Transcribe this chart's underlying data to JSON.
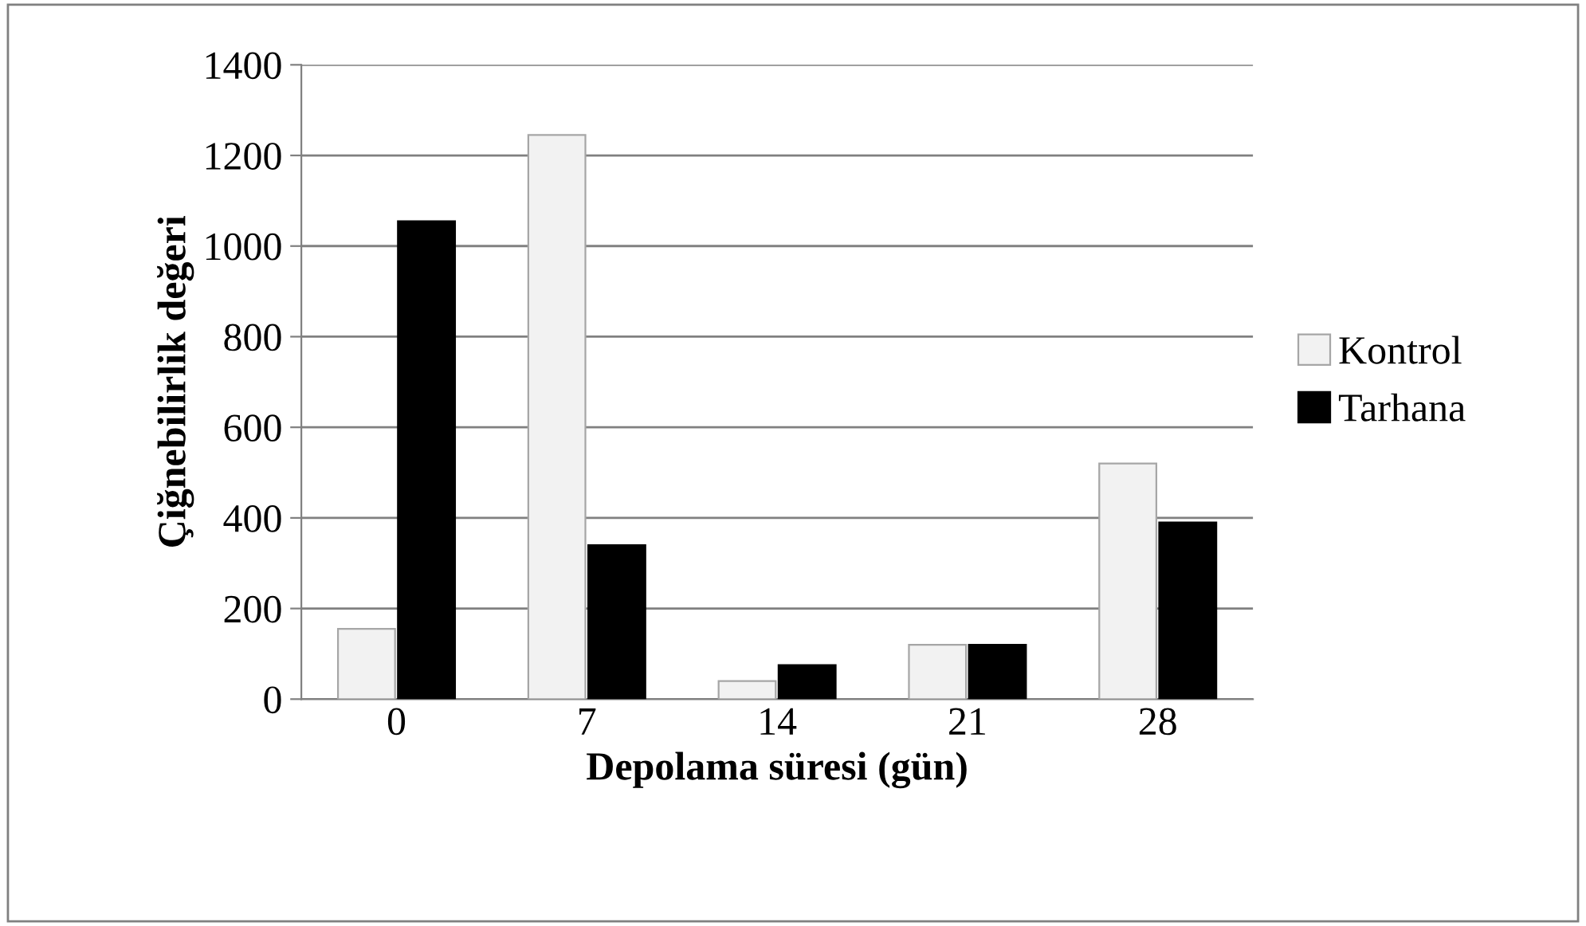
{
  "chart_data": {
    "type": "bar",
    "xlabel": "Depolama süresi (gün)",
    "ylabel": "Çiğnebilirlik değeri",
    "categories": [
      "0",
      "7",
      "14",
      "21",
      "28"
    ],
    "series": [
      {
        "name": "Kontrol",
        "color": "#f2f2f2",
        "values": [
          155,
          1245,
          40,
          120,
          520
        ]
      },
      {
        "name": "Tarhana",
        "color": "#000000",
        "values": [
          1055,
          340,
          75,
          120,
          390
        ]
      }
    ],
    "ylim": [
      0,
      1400
    ],
    "yticks": [
      0,
      200,
      400,
      600,
      800,
      1000,
      1200,
      1400
    ],
    "grid": "y",
    "legend": "right"
  }
}
